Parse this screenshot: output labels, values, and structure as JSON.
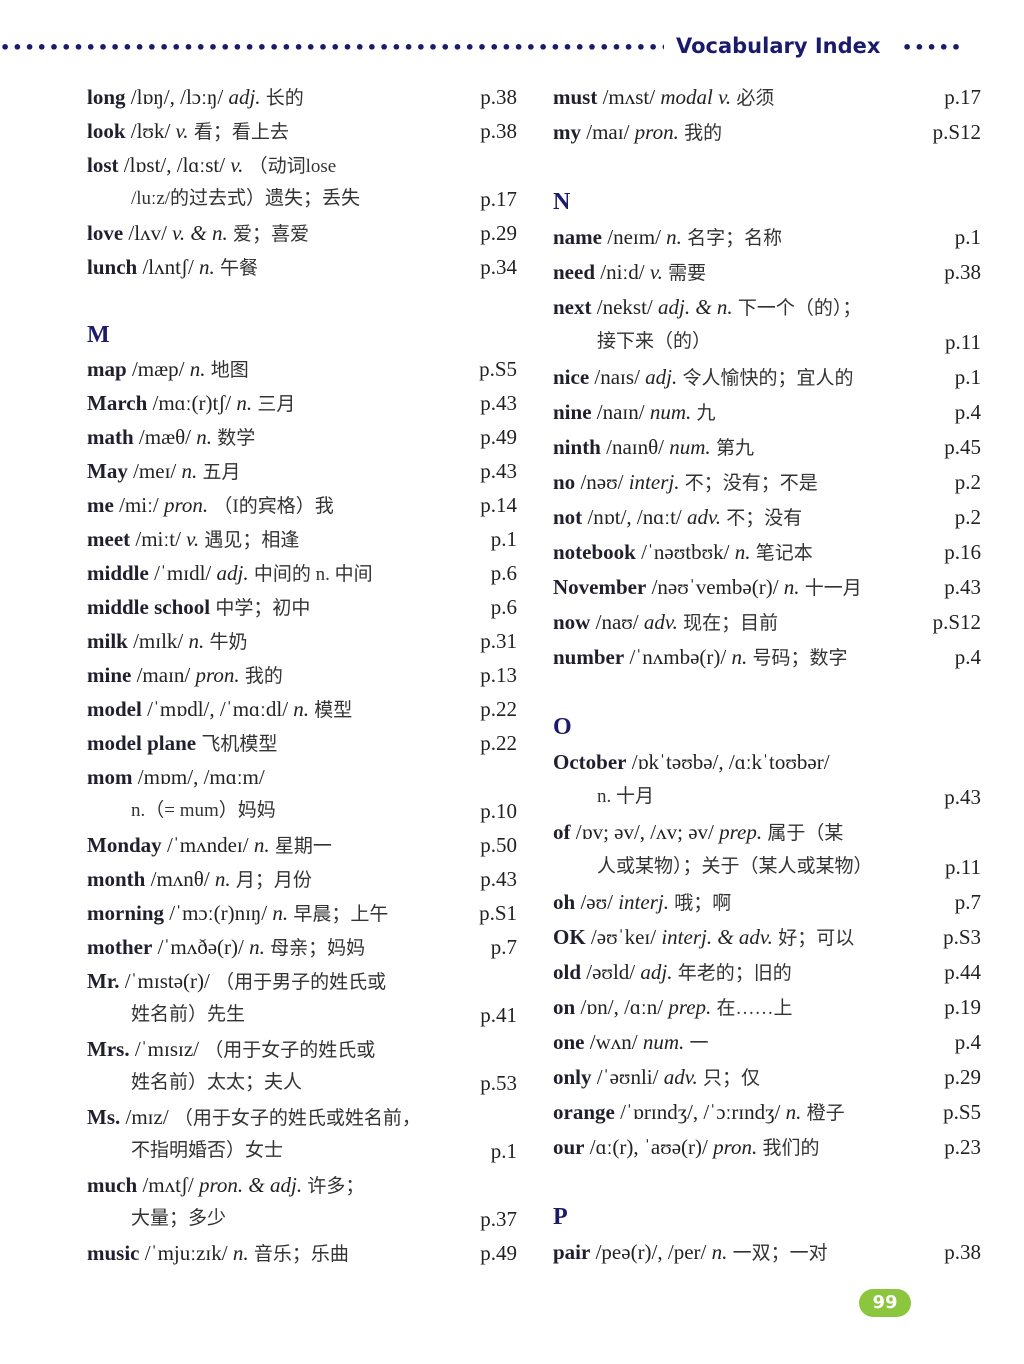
{
  "header": {
    "title": "Vocabulary Index"
  },
  "page_number": "99",
  "colors": {
    "heading": "#1b1b6b",
    "page_badge": "#8cc63f"
  },
  "columns": [
    {
      "items": [
        {
          "word": "long",
          "phon": "/lɒŋ/, /lɔːŋ/",
          "pos": "adj.",
          "def": "长的",
          "page": "p.38"
        },
        {
          "word": "look",
          "phon": "/lʊk/",
          "pos": "v.",
          "def": "看；看上去",
          "page": "p.38"
        },
        {
          "word": "lost",
          "phon": "/lɒst/, /lɑːst/",
          "pos": "v.",
          "def": "（动词lose",
          "cont": "/luːz/的过去式）遗失；丢失",
          "page": "p.17"
        },
        {
          "word": "love",
          "phon": "/lʌv/",
          "pos": "v. & n.",
          "def": "爱；喜爱",
          "page": "p.29"
        },
        {
          "word": "lunch",
          "phon": "/lʌntʃ/",
          "pos": "n.",
          "def": "午餐",
          "page": "p.34"
        },
        {
          "blank": true
        },
        {
          "section": "M"
        },
        {
          "word": "map",
          "phon": "/mæp/",
          "pos": "n.",
          "def": "地图",
          "page": "p.S5"
        },
        {
          "word": "March",
          "phon": "/mɑː(r)tʃ/",
          "pos": "n.",
          "def": "三月",
          "page": "p.43"
        },
        {
          "word": "math",
          "phon": "/mæθ/",
          "pos": "n.",
          "def": "数学",
          "page": "p.49"
        },
        {
          "word": "May",
          "phon": "/meɪ/",
          "pos": "n.",
          "def": "五月",
          "page": "p.43"
        },
        {
          "word": "me",
          "phon": "/miː/",
          "pos": "pron.",
          "def": "（I的宾格）我",
          "page": "p.14"
        },
        {
          "word": "meet",
          "phon": "/miːt/",
          "pos": "v.",
          "def": "遇见；相逢",
          "page": "p.1"
        },
        {
          "word": "middle",
          "phon": "/ˈmɪdl/",
          "pos": "adj.",
          "def": "中间的 n. 中间",
          "page": "p.6"
        },
        {
          "word": "middle school",
          "phon": "",
          "pos": "",
          "def": "中学；初中",
          "page": "p.6"
        },
        {
          "word": "milk",
          "phon": "/mɪlk/",
          "pos": "n.",
          "def": "牛奶",
          "page": "p.31"
        },
        {
          "word": "mine",
          "phon": "/maɪn/",
          "pos": "pron.",
          "def": "我的",
          "page": "p.13"
        },
        {
          "word": "model",
          "phon": "/ˈmɒdl/, /ˈmɑːdl/",
          "pos": "n.",
          "def": "模型",
          "page": "p.22"
        },
        {
          "word": "model plane",
          "phon": "",
          "pos": "",
          "def": "飞机模型",
          "page": "p.22"
        },
        {
          "word": "mom",
          "phon": "/mɒm/, /mɑːm/",
          "pos": "",
          "def": "",
          "cont": "n.（= mum）妈妈",
          "page": "p.10"
        },
        {
          "word": "Monday",
          "phon": "/ˈmʌndeɪ/",
          "pos": "n.",
          "def": "星期一",
          "page": "p.50"
        },
        {
          "word": "month",
          "phon": "/mʌnθ/",
          "pos": "n.",
          "def": "月；月份",
          "page": "p.43"
        },
        {
          "word": "morning",
          "phon": "/ˈmɔː(r)nɪŋ/",
          "pos": "n.",
          "def": "早晨；上午",
          "page": "p.S1"
        },
        {
          "word": "mother",
          "phon": "/ˈmʌðə(r)/",
          "pos": "n.",
          "def": "母亲；妈妈",
          "page": "p.7"
        },
        {
          "word": "Mr.",
          "phon": "/ˈmɪstə(r)/",
          "pos": "",
          "def": "（用于男子的姓氏或",
          "cont": "姓名前）先生",
          "page": "p.41"
        },
        {
          "word": "Mrs.",
          "phon": "/ˈmɪsɪz/",
          "pos": "",
          "def": "（用于女子的姓氏或",
          "cont": "姓名前）太太；夫人",
          "page": "p.53"
        },
        {
          "word": "Ms.",
          "phon": "/mɪz/",
          "pos": "",
          "def": "（用于女子的姓氏或姓名前，",
          "cont": "不指明婚否）女士",
          "page": "p.1"
        },
        {
          "word": "much",
          "phon": "/mʌtʃ/",
          "pos": "pron. & adj.",
          "def": "许多；",
          "cont": "大量；多少",
          "page": "p.37"
        },
        {
          "word": "music",
          "phon": "/ˈmjuːzɪk/",
          "pos": "n.",
          "def": "音乐；乐曲",
          "page": "p.49"
        }
      ]
    },
    {
      "items": [
        {
          "word": "must",
          "phon": "/mʌst/",
          "pos": "modal v.",
          "def": "必须",
          "page": "p.17"
        },
        {
          "word": "my",
          "phon": "/maɪ/",
          "pos": "pron.",
          "def": "我的",
          "page": "p.S12"
        },
        {
          "blank": true
        },
        {
          "section": "N"
        },
        {
          "word": "name",
          "phon": "/neɪm/",
          "pos": "n.",
          "def": "名字；名称",
          "page": "p.1"
        },
        {
          "word": "need",
          "phon": "/niːd/",
          "pos": "v.",
          "def": "需要",
          "page": "p.38"
        },
        {
          "word": "next",
          "phon": "/nekst/",
          "pos": "adj. & n.",
          "def": "下一个（的）；",
          "cont": "接下来（的）",
          "page": "p.11"
        },
        {
          "word": "nice",
          "phon": "/naɪs/",
          "pos": "adj.",
          "def": "令人愉快的；宜人的",
          "page": "p.1"
        },
        {
          "word": "nine",
          "phon": "/naɪn/",
          "pos": "num.",
          "def": "九",
          "page": "p.4"
        },
        {
          "word": "ninth",
          "phon": "/naɪnθ/",
          "pos": "num.",
          "def": "第九",
          "page": "p.45"
        },
        {
          "word": "no",
          "phon": "/nəʊ/",
          "pos": "interj.",
          "def": "不；没有；不是",
          "page": "p.2"
        },
        {
          "word": "not",
          "phon": "/nɒt/, /nɑːt/",
          "pos": "adv.",
          "def": "不；没有",
          "page": "p.2"
        },
        {
          "word": "notebook",
          "phon": "/ˈnəʊtbʊk/",
          "pos": "n.",
          "def": "笔记本",
          "page": "p.16"
        },
        {
          "word": "November",
          "phon": "/nəʊˈvembə(r)/",
          "pos": "n.",
          "def": "十一月",
          "page": "p.43"
        },
        {
          "word": "now",
          "phon": "/naʊ/",
          "pos": "adv.",
          "def": "现在；目前",
          "page": "p.S12"
        },
        {
          "word": "number",
          "phon": "/ˈnʌmbə(r)/",
          "pos": "n.",
          "def": "号码；数字",
          "page": "p.4"
        },
        {
          "blank": true
        },
        {
          "section": "O"
        },
        {
          "word": "October",
          "phon": "/ɒkˈtəʊbə/, /ɑːkˈtoʊbər/",
          "pos": "",
          "def": "",
          "cont": "n. 十月",
          "page": "p.43"
        },
        {
          "word": "of",
          "phon": "/ɒv; əv/, /ʌv; əv/",
          "pos": "prep.",
          "def": "属于（某",
          "cont": "人或某物）；关于（某人或某物）",
          "page": "p.11"
        },
        {
          "word": "oh",
          "phon": "/əʊ/",
          "pos": "interj.",
          "def": "哦；啊",
          "page": "p.7"
        },
        {
          "word": "OK",
          "phon": "/əʊˈkeɪ/",
          "pos": "interj. & adv.",
          "def": "好；可以",
          "page": "p.S3"
        },
        {
          "word": "old",
          "phon": "/əʊld/",
          "pos": "adj.",
          "def": "年老的；旧的",
          "page": "p.44"
        },
        {
          "word": "on",
          "phon": "/ɒn/, /ɑːn/",
          "pos": "prep.",
          "def": "在……上",
          "page": "p.19"
        },
        {
          "word": "one",
          "phon": "/wʌn/",
          "pos": "num.",
          "def": "一",
          "page": "p.4"
        },
        {
          "word": "only",
          "phon": "/ˈəʊnli/",
          "pos": "adv.",
          "def": "只；仅",
          "page": "p.29"
        },
        {
          "word": "orange",
          "phon": "/ˈɒrɪndʒ/, /ˈɔːrɪndʒ/",
          "pos": "n.",
          "def": "橙子",
          "page": "p.S5"
        },
        {
          "word": "our",
          "phon": "/ɑː(r), ˈaʊə(r)/",
          "pos": "pron.",
          "def": "我们的",
          "page": "p.23"
        },
        {
          "blank": true
        },
        {
          "section": "P"
        },
        {
          "word": "pair",
          "phon": "/peə(r)/, /per/",
          "pos": "n.",
          "def": "一双；一对",
          "page": "p.38"
        }
      ]
    }
  ]
}
